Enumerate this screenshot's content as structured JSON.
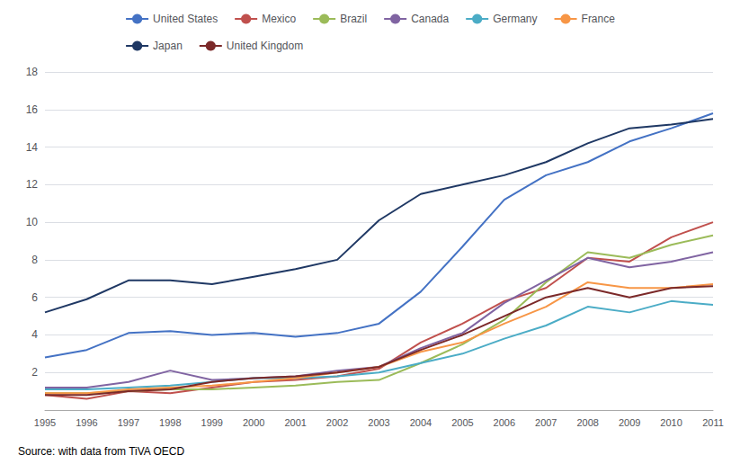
{
  "chart_data": {
    "type": "line",
    "x": [
      1995,
      1996,
      1997,
      1998,
      1999,
      2000,
      2001,
      2002,
      2003,
      2004,
      2005,
      2006,
      2007,
      2008,
      2009,
      2010,
      2011
    ],
    "series": [
      {
        "name": "United States",
        "color": "#4472C4",
        "values": [
          2.8,
          3.2,
          4.1,
          4.2,
          4.0,
          4.1,
          3.9,
          4.1,
          4.6,
          6.3,
          8.7,
          11.2,
          12.5,
          13.2,
          14.3,
          15.0,
          15.8
        ]
      },
      {
        "name": "Mexico",
        "color": "#C0504D",
        "values": [
          0.8,
          0.6,
          1.0,
          0.9,
          1.2,
          1.5,
          1.6,
          1.8,
          2.2,
          3.6,
          4.6,
          5.8,
          6.5,
          8.1,
          7.9,
          9.2,
          10.0
        ]
      },
      {
        "name": "Brazil",
        "color": "#9BBB59",
        "values": [
          0.9,
          0.9,
          1.0,
          1.1,
          1.1,
          1.2,
          1.3,
          1.5,
          1.6,
          2.5,
          3.5,
          4.8,
          6.8,
          8.4,
          8.1,
          8.8,
          9.3
        ]
      },
      {
        "name": "Canada",
        "color": "#8064A2",
        "values": [
          1.2,
          1.2,
          1.5,
          2.1,
          1.6,
          1.7,
          1.8,
          2.1,
          2.3,
          3.3,
          4.1,
          5.7,
          6.9,
          8.1,
          7.6,
          7.9,
          8.4
        ]
      },
      {
        "name": "Germany",
        "color": "#4BACC6",
        "values": [
          1.1,
          1.1,
          1.2,
          1.3,
          1.5,
          1.7,
          1.7,
          1.8,
          2.0,
          2.5,
          3.0,
          3.8,
          4.5,
          5.5,
          5.2,
          5.8,
          5.6
        ]
      },
      {
        "name": "France",
        "color": "#F79646",
        "values": [
          0.9,
          0.9,
          1.1,
          1.2,
          1.3,
          1.5,
          1.7,
          2.0,
          2.3,
          3.1,
          3.6,
          4.6,
          5.5,
          6.8,
          6.5,
          6.5,
          6.7
        ]
      },
      {
        "name": "Japan",
        "color": "#1F3864",
        "values": [
          5.2,
          5.9,
          6.9,
          6.9,
          6.7,
          7.1,
          7.5,
          8.0,
          10.1,
          11.5,
          12.0,
          12.5,
          13.2,
          14.2,
          15.0,
          15.2,
          15.5
        ]
      },
      {
        "name": "United Kingdom",
        "color": "#7B2929",
        "values": [
          0.8,
          0.8,
          1.0,
          1.1,
          1.5,
          1.7,
          1.8,
          2.0,
          2.3,
          3.2,
          4.0,
          5.0,
          6.0,
          6.5,
          6.0,
          6.5,
          6.6
        ]
      }
    ],
    "xlim": [
      1995,
      2011
    ],
    "xticks": [
      1995,
      1996,
      1997,
      1998,
      1999,
      2000,
      2001,
      2002,
      2003,
      2004,
      2005,
      2006,
      2007,
      2008,
      2009,
      2010,
      2011
    ],
    "ylim": [
      0,
      18
    ],
    "yticks": [
      2,
      4,
      6,
      8,
      10,
      12,
      14,
      16,
      18
    ],
    "grid": true,
    "annotations": [
      "Source: with data from TiVA OECD"
    ]
  }
}
